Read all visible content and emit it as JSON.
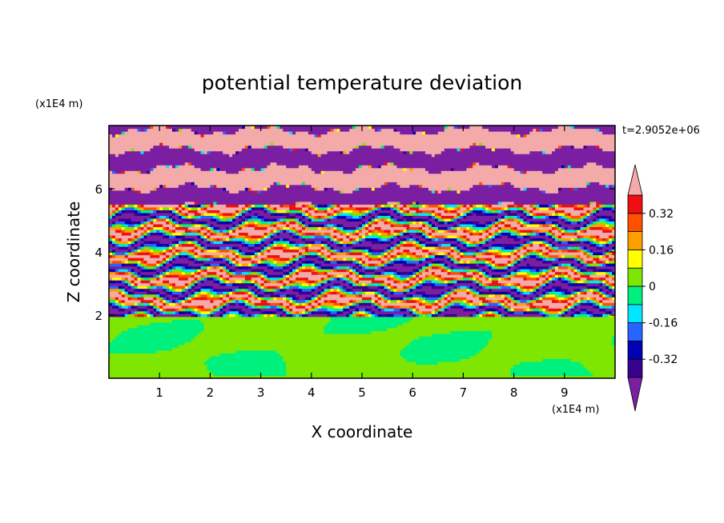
{
  "chart_data": {
    "type": "heatmap",
    "title": "potential temperature deviation",
    "xlabel": "X coordinate",
    "ylabel": "Z coordinate",
    "x_unit": "(x1E4 m)",
    "y_unit": "(x1E4 m)",
    "time_label": "t=2.9052e+06",
    "xlim": [
      0,
      10
    ],
    "ylim": [
      0,
      8
    ],
    "x_ticks": [
      1,
      2,
      3,
      4,
      5,
      6,
      7,
      8,
      9
    ],
    "y_ticks": [
      2,
      4,
      6
    ],
    "x_tick_labels": [
      "1",
      "2",
      "3",
      "4",
      "5",
      "6",
      "7",
      "8",
      "9"
    ],
    "y_tick_labels": [
      "2",
      "4",
      "6"
    ],
    "colorbar": {
      "levels": [
        -0.4,
        -0.32,
        -0.24,
        -0.16,
        -0.08,
        0,
        0.08,
        0.16,
        0.24,
        0.32,
        0.4
      ],
      "colors": [
        "#7b1fa2",
        "#3a0090",
        "#0000b4",
        "#2864ff",
        "#00e6ff",
        "#00f07d",
        "#7ee600",
        "#ffff00",
        "#ffa000",
        "#ff5000",
        "#ee1010",
        "#f5aaaa"
      ],
      "labels": [
        {
          "value": 0.32,
          "text": "0.32"
        },
        {
          "value": 0.16,
          "text": "0.16"
        },
        {
          "value": 0,
          "text": "0"
        },
        {
          "value": -0.16,
          "text": "-0.16"
        },
        {
          "value": -0.32,
          "text": "-0.32"
        }
      ],
      "extend": "both"
    },
    "regions": {
      "lower_layer": {
        "z_range": [
          0,
          2
        ],
        "values_range": [
          -0.02,
          0.06
        ],
        "dominant_colors": [
          "#00f07d",
          "#7ee600"
        ]
      },
      "transition_layer": {
        "z_range": [
          2,
          5.5
        ],
        "values_range": [
          -0.4,
          0.4
        ]
      },
      "upper_layer": {
        "z_range": [
          5.5,
          8
        ],
        "values_range": [
          -0.4,
          0.4
        ],
        "dominant_colors": [
          "#f5aaaa",
          "#7b1fa2"
        ]
      }
    }
  }
}
